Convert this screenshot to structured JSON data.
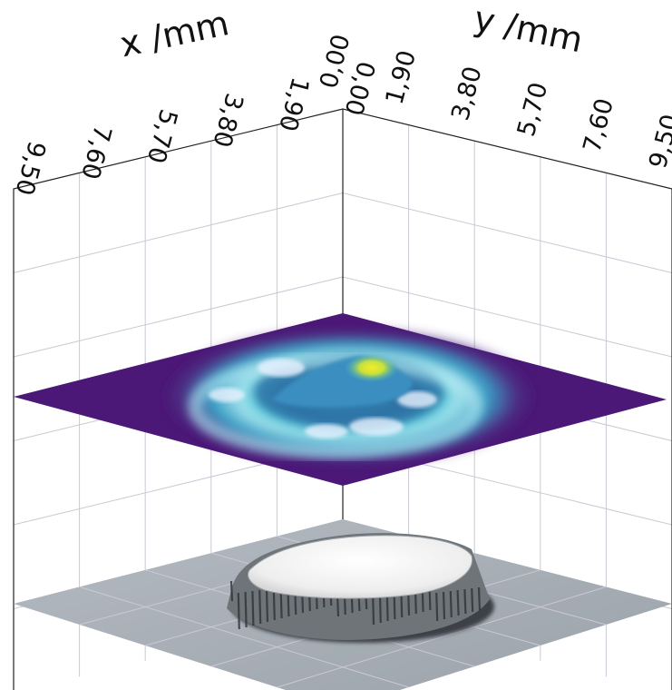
{
  "chart_data": {
    "type": "surface",
    "x_axis": {
      "label": "x /mm",
      "ticks": [
        "9,50",
        "7,60",
        "5,70",
        "3,80",
        "1,90",
        "0,00"
      ],
      "range": [
        0,
        9.5
      ]
    },
    "y_axis": {
      "label": "y /mm",
      "ticks": [
        "0,00",
        "1,90",
        "3,80",
        "5,70",
        "7,60",
        "9,50"
      ],
      "range": [
        0,
        9.5
      ]
    },
    "surface": {
      "colormap": "viridis-like",
      "shape": "annular ring with central raised peak",
      "colors": {
        "low": "#4b1877",
        "mid": "#3db2cf",
        "high": "#f2e72a",
        "highlight": "#e9f2ff"
      }
    },
    "projection": {
      "shape": "raised round plateau",
      "colors": {
        "floor": "#a9b0b8",
        "plateau": "#f2f2f2",
        "edge": "#6f7479"
      }
    },
    "grid": true
  }
}
